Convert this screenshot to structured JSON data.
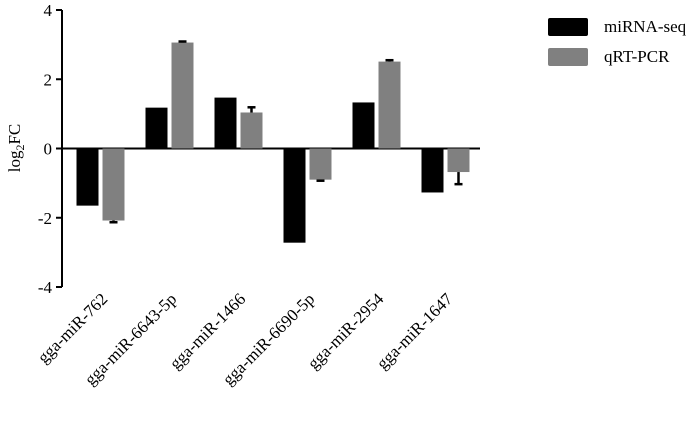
{
  "chart_data": {
    "type": "bar",
    "ylabel": [
      "log",
      "2",
      "FC"
    ],
    "categories": [
      "gga-miR-762",
      "gga-miR-6643-5p",
      "gga-miR-1466",
      "gga-miR-6690-5p",
      "gga-miR-2954",
      "gga-miR-1647"
    ],
    "series": [
      {
        "name": "miRNA-seq",
        "color": "#000000",
        "values": [
          -1.65,
          1.18,
          1.47,
          -2.72,
          1.33,
          -1.27
        ]
      },
      {
        "name": "qRT-PCR",
        "color": "#808080",
        "values": [
          -2.08,
          3.06,
          1.04,
          -0.9,
          2.51,
          -0.68
        ],
        "errors": [
          0.05,
          0.03,
          0.15,
          0.03,
          0.04,
          0.35
        ]
      }
    ],
    "ylim": [
      -4,
      4
    ],
    "yticks": [
      -4,
      -2,
      0,
      2,
      4
    ],
    "legend": "top-right"
  }
}
